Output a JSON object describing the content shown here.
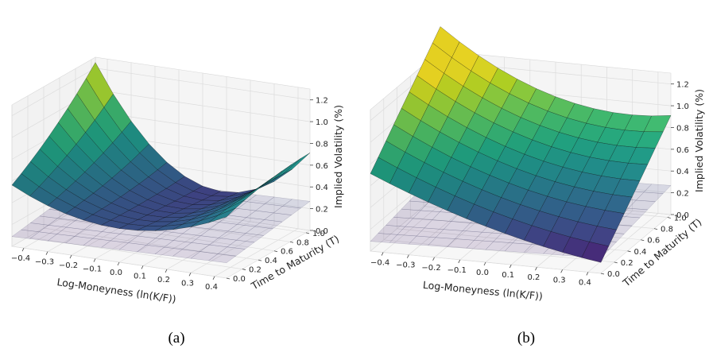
{
  "chart_data": [
    {
      "type": "surface3d",
      "panel_label": "(a)",
      "xlabel": "Log-Moneyness (ln(K/F))",
      "ylabel": "Time to Maturity (T)",
      "zlabel": "Implied Volatility (%)",
      "x_ticks": [
        "−0.4",
        "−0.3",
        "−0.2",
        "−0.1",
        "0.0",
        "0.1",
        "0.2",
        "0.3",
        "0.4"
      ],
      "y_ticks": [
        "0.0",
        "0.2",
        "0.4",
        "0.6",
        "0.8",
        "1.0"
      ],
      "z_ticks": [
        "0.0",
        "0.2",
        "0.4",
        "0.6",
        "0.8",
        "1.0",
        "1.2"
      ],
      "xlim": [
        -0.45,
        0.45
      ],
      "ylim": [
        0.0,
        1.05
      ],
      "zlim": [
        0.0,
        1.3
      ],
      "colormap": "viridis",
      "grid": "on",
      "surfaces": [
        {
          "role": "smile",
          "colormap": "viridis",
          "z_at_T0": {
            "x": [
              -0.45,
              0.0,
              0.45
            ],
            "z": [
              0.43,
              0.33,
              0.39
            ]
          },
          "z_at_T1": {
            "x": [
              -0.45,
              0.08,
              0.45
            ],
            "z": [
              1.02,
              0.26,
              0.52
            ]
          }
        },
        {
          "role": "translucent reference",
          "colormap": "viridis-pale",
          "z_approx": [
            0.05,
            0.25
          ]
        }
      ]
    },
    {
      "type": "surface3d",
      "panel_label": "(b)",
      "xlabel": "Log-Moneyness (ln(K/F))",
      "ylabel": "Time to Maturity (T)",
      "zlabel": "Implied Volatility (%)",
      "x_ticks": [
        "−0.4",
        "−0.3",
        "−0.2",
        "−0.1",
        "0.0",
        "0.1",
        "0.2",
        "0.3",
        "0.4"
      ],
      "y_ticks": [
        "0.0",
        "0.2",
        "0.4",
        "0.6",
        "0.8",
        "1.0"
      ],
      "z_ticks": [
        "0.0",
        "0.2",
        "0.4",
        "0.6",
        "0.8",
        "1.0",
        "1.2"
      ],
      "xlim": [
        -0.45,
        0.45
      ],
      "ylim": [
        0.0,
        1.05
      ],
      "zlim": [
        0.0,
        1.3
      ],
      "colormap": "viridis",
      "grid": "on",
      "surfaces": [
        {
          "role": "smile",
          "colormap": "viridis",
          "z_at_T0": {
            "x": [
              -0.45,
              0.45
            ],
            "z": [
              0.66,
              0.0
            ]
          },
          "z_at_T1": {
            "x": [
              -0.45,
              0.45
            ],
            "z": [
              1.25,
              0.78
            ]
          }
        },
        {
          "role": "translucent reference",
          "colormap": "viridis-pale",
          "z_approx": [
            0.05,
            0.25
          ]
        }
      ]
    }
  ]
}
